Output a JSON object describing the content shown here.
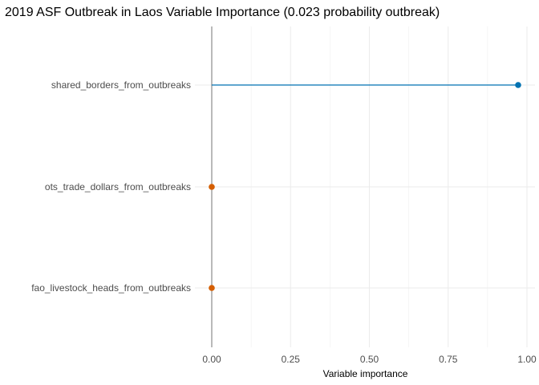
{
  "chart_data": {
    "type": "lollipop",
    "title": "2019 ASF Outbreak in Laos Variable Importance (0.023 probability outbreak)",
    "xlabel": "Variable importance",
    "ylabel": "",
    "xlim": [
      -0.06,
      1.0
    ],
    "x_ticks": [
      0.0,
      0.25,
      0.5,
      0.75,
      1.0
    ],
    "x_tick_labels": [
      "0.00",
      "0.25",
      "0.50",
      "0.75",
      "1.00"
    ],
    "grid": true,
    "legend": "none",
    "categories": [
      "shared_borders_from_outbreaks",
      "ots_trade_dollars_from_outbreaks",
      "fao_livestock_heads_from_outbreaks"
    ],
    "values": [
      0.972,
      0.0,
      0.0
    ],
    "colors": [
      "#0072b2",
      "#d55e00",
      "#d55e00"
    ],
    "baseline_color": "#808080"
  }
}
